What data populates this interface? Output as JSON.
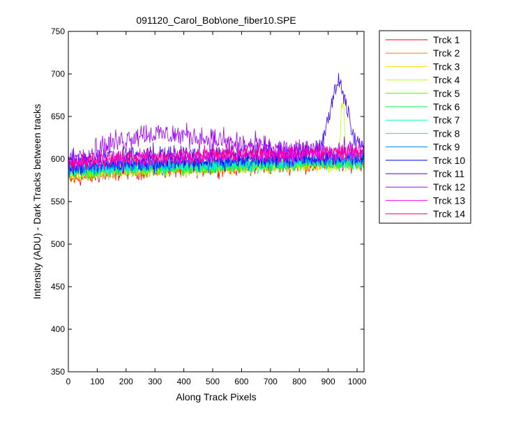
{
  "chart_data": {
    "type": "line",
    "title": "091120_Carol_Bob\\one_fiber10.SPE",
    "xlabel": "Along Track Pixels",
    "ylabel": "Intensity (ADU) - Dark Tracks between tracks",
    "xlim": [
      0,
      1024
    ],
    "ylim": [
      350,
      750
    ],
    "x_ticks": [
      "0",
      "100",
      "200",
      "300",
      "400",
      "500",
      "600",
      "700",
      "800",
      "900",
      "1000"
    ],
    "y_ticks": [
      "350",
      "400",
      "450",
      "500",
      "550",
      "600",
      "650",
      "700",
      "750"
    ],
    "grid": false,
    "legend_position": "outside-right-top",
    "series": [
      {
        "name": "Trck 1",
        "color": "#ff0000",
        "base": 590,
        "noise": 9,
        "profile": [
          [
            0,
            575
          ],
          [
            200,
            585
          ],
          [
            1024,
            595
          ]
        ]
      },
      {
        "name": "Trck 2",
        "color": "#ff7f00",
        "base": 590,
        "noise": 9,
        "profile": [
          [
            0,
            580
          ],
          [
            200,
            587
          ],
          [
            1024,
            596
          ]
        ]
      },
      {
        "name": "Trck 3",
        "color": "#ffdf00",
        "base": 590,
        "noise": 9,
        "profile": [
          [
            0,
            582
          ],
          [
            200,
            588
          ],
          [
            1024,
            597
          ]
        ]
      },
      {
        "name": "Trck 4",
        "color": "#bfff00",
        "base": 590,
        "noise": 9,
        "profile": [
          [
            0,
            583
          ],
          [
            200,
            588
          ],
          [
            930,
            595
          ],
          [
            940,
            600
          ],
          [
            945,
            665
          ],
          [
            955,
            665
          ],
          [
            960,
            600
          ],
          [
            1024,
            597
          ]
        ]
      },
      {
        "name": "Trck 5",
        "color": "#40ff00",
        "base": 590,
        "noise": 9,
        "profile": [
          [
            0,
            584
          ],
          [
            200,
            588
          ],
          [
            1024,
            596
          ]
        ]
      },
      {
        "name": "Trck 6",
        "color": "#00ff40",
        "base": 590,
        "noise": 9,
        "profile": [
          [
            0,
            585
          ],
          [
            200,
            589
          ],
          [
            1024,
            597
          ]
        ]
      },
      {
        "name": "Trck 7",
        "color": "#00ffbf",
        "base": 590,
        "noise": 9,
        "profile": [
          [
            0,
            586
          ],
          [
            200,
            590
          ],
          [
            1024,
            598
          ]
        ]
      },
      {
        "name": "Trck 8",
        "color": "#00dfff",
        "base": 592,
        "noise": 9,
        "profile": [
          [
            0,
            587
          ],
          [
            200,
            591
          ],
          [
            1024,
            599
          ]
        ]
      },
      {
        "name": "Trck 9",
        "color": "#007fff",
        "base": 595,
        "noise": 9,
        "profile": [
          [
            0,
            588
          ],
          [
            200,
            593
          ],
          [
            1024,
            601
          ]
        ]
      },
      {
        "name": "Trck 10",
        "color": "#0000ff",
        "base": 598,
        "noise": 10,
        "profile": [
          [
            0,
            590
          ],
          [
            200,
            595
          ],
          [
            1024,
            603
          ]
        ]
      },
      {
        "name": "Trck 11",
        "color": "#4000ff",
        "base": 605,
        "noise": 12,
        "profile": [
          [
            0,
            595
          ],
          [
            200,
            605
          ],
          [
            500,
            606
          ],
          [
            850,
            608
          ],
          [
            880,
            620
          ],
          [
            920,
            680
          ],
          [
            940,
            690
          ],
          [
            965,
            660
          ],
          [
            985,
            625
          ],
          [
            1024,
            612
          ]
        ]
      },
      {
        "name": "Trck 12",
        "color": "#a000ff",
        "base": 615,
        "noise": 14,
        "profile": [
          [
            0,
            598
          ],
          [
            100,
            612
          ],
          [
            250,
            630
          ],
          [
            400,
            628
          ],
          [
            550,
            620
          ],
          [
            700,
            612
          ],
          [
            850,
            608
          ],
          [
            1024,
            610
          ]
        ]
      },
      {
        "name": "Trck 13",
        "color": "#ff00ff",
        "base": 603,
        "noise": 10,
        "profile": [
          [
            0,
            593
          ],
          [
            200,
            600
          ],
          [
            600,
            604
          ],
          [
            1024,
            607
          ]
        ]
      },
      {
        "name": "Trck 14",
        "color": "#ff0080",
        "base": 605,
        "noise": 10,
        "profile": [
          [
            0,
            595
          ],
          [
            200,
            602
          ],
          [
            600,
            606
          ],
          [
            1024,
            609
          ]
        ]
      }
    ]
  }
}
